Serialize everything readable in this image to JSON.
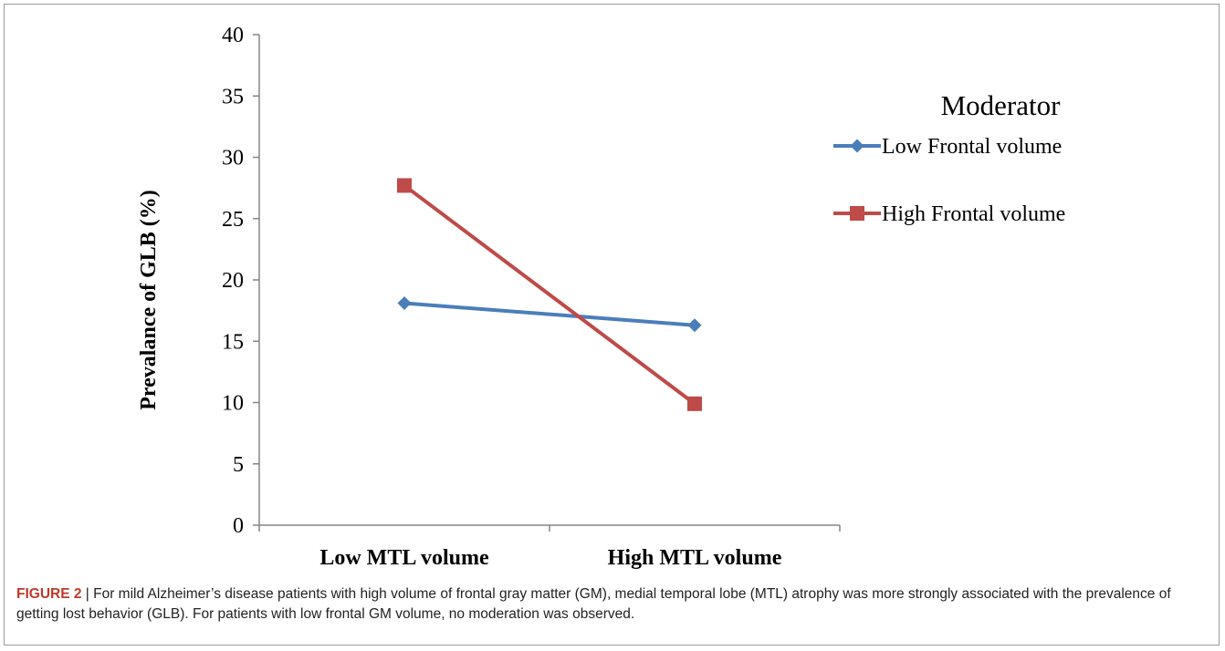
{
  "chart_data": {
    "type": "line",
    "categories": [
      "Low MTL volume",
      "High MTL volume"
    ],
    "series": [
      {
        "name": "Low Frontal volume",
        "values": [
          18.1,
          16.3
        ],
        "color": "#4a7ebb",
        "marker": "diamond"
      },
      {
        "name": "High Frontal volume",
        "values": [
          27.7,
          9.9
        ],
        "color": "#be4b48",
        "marker": "square"
      }
    ],
    "ylabel": "Prevalance of GLB (%)",
    "xlabel": "",
    "ylim": [
      0,
      40
    ],
    "yticks": [
      0,
      5,
      10,
      15,
      20,
      25,
      30,
      35,
      40
    ],
    "legend_title": "Moderator",
    "legend_position": "right",
    "grid": false
  },
  "caption": {
    "label": "FIGURE 2",
    "separator": " | ",
    "text": "For mild Alzheimer’s disease patients with high volume of frontal gray matter (GM), medial temporal lobe (MTL) atrophy was more strongly associated with the prevalence of getting lost behavior (GLB). For patients with low frontal GM volume, no moderation was observed."
  }
}
